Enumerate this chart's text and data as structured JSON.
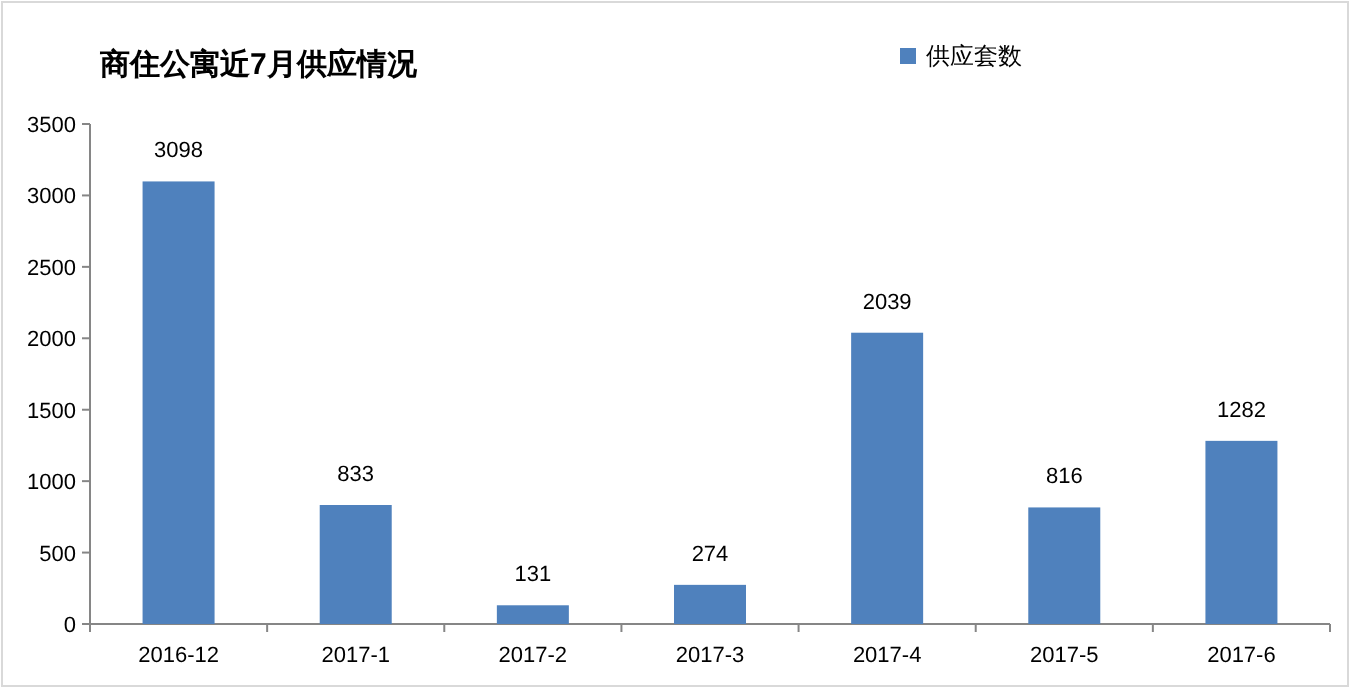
{
  "chart_data": {
    "type": "bar",
    "title": "商住公寓近7月供应情况",
    "categories": [
      "2016-12",
      "2017-1",
      "2017-2",
      "2017-3",
      "2017-4",
      "2017-5",
      "2017-6"
    ],
    "series": [
      {
        "name": "供应套数",
        "color": "#4f81bd",
        "values": [
          3098,
          833,
          131,
          274,
          2039,
          816,
          1282
        ]
      }
    ],
    "ylim": [
      0,
      3500
    ],
    "yticks": [
      0,
      500,
      1000,
      1500,
      2000,
      2500,
      3000,
      3500
    ],
    "data_labels": true,
    "legend": "top right",
    "grid": false
  }
}
